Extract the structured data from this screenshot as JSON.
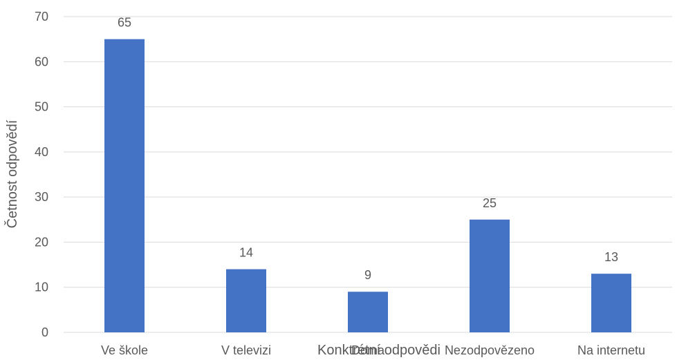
{
  "chart_data": {
    "type": "bar",
    "title": "",
    "xlabel": "Konktrétní odpovědi",
    "ylabel": "Četnost odpovědí",
    "categories": [
      "Ve škole",
      "V televizi",
      "Doma",
      "Nezodpovězeno",
      "Na internetu"
    ],
    "values": [
      65,
      14,
      9,
      25,
      13
    ],
    "ylim": [
      0,
      70
    ],
    "yticks": [
      0,
      10,
      20,
      30,
      40,
      50,
      60,
      70
    ],
    "grid": true,
    "legend": "none",
    "bar_color": "#4472c4",
    "data_labels": true
  }
}
